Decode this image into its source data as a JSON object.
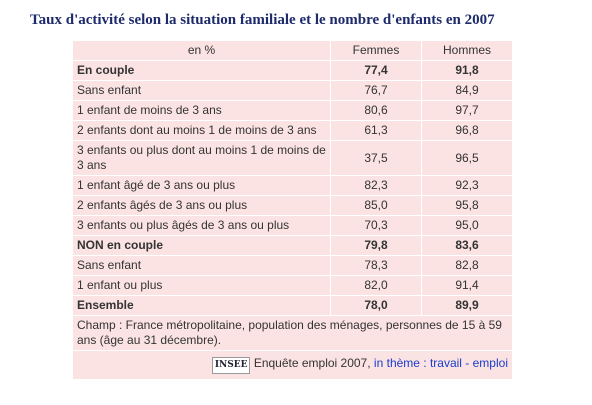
{
  "title": "Taux d'activité selon la situation familiale et le nombre d'enfants en 2007",
  "table": {
    "header": [
      "en %",
      "Femmes",
      "Hommes"
    ],
    "rows": [
      {
        "cells": [
          "En couple",
          "77,4",
          "91,8"
        ],
        "bold": true
      },
      {
        "cells": [
          "Sans enfant",
          "76,7",
          "84,9"
        ],
        "bold": false
      },
      {
        "cells": [
          "1 enfant de moins de 3 ans",
          "80,6",
          "97,7"
        ],
        "bold": false
      },
      {
        "cells": [
          "2 enfants dont au moins 1 de moins de 3 ans",
          "61,3",
          "96,8"
        ],
        "bold": false
      },
      {
        "cells": [
          "3 enfants ou plus dont au moins 1 de moins de 3 ans",
          "37,5",
          "96,5"
        ],
        "bold": false
      },
      {
        "cells": [
          "1 enfant âgé de 3 ans ou plus",
          "82,3",
          "92,3"
        ],
        "bold": false
      },
      {
        "cells": [
          "2 enfants âgés de 3 ans ou plus",
          "85,0",
          "95,8"
        ],
        "bold": false
      },
      {
        "cells": [
          "3 enfants ou plus âgés de 3 ans ou plus",
          "70,3",
          "95,0"
        ],
        "bold": false
      },
      {
        "cells": [
          "NON en couple",
          "79,8",
          "83,6"
        ],
        "bold": true
      },
      {
        "cells": [
          "Sans enfant",
          "78,3",
          "82,8"
        ],
        "bold": false
      },
      {
        "cells": [
          "1 enfant ou plus",
          "82,0",
          "91,4"
        ],
        "bold": false
      },
      {
        "cells": [
          "Ensemble",
          "78,0",
          "89,9"
        ],
        "bold": true
      }
    ],
    "note": "Champ : France métropolitaine, population des ménages, personnes de 15 à 59 ans (âge au 31 décembre).",
    "source": {
      "logo": "INSEE",
      "text": "Enquête emploi 2007,",
      "link_prefix": "in",
      "link": "thème : travail - emploi"
    }
  }
}
